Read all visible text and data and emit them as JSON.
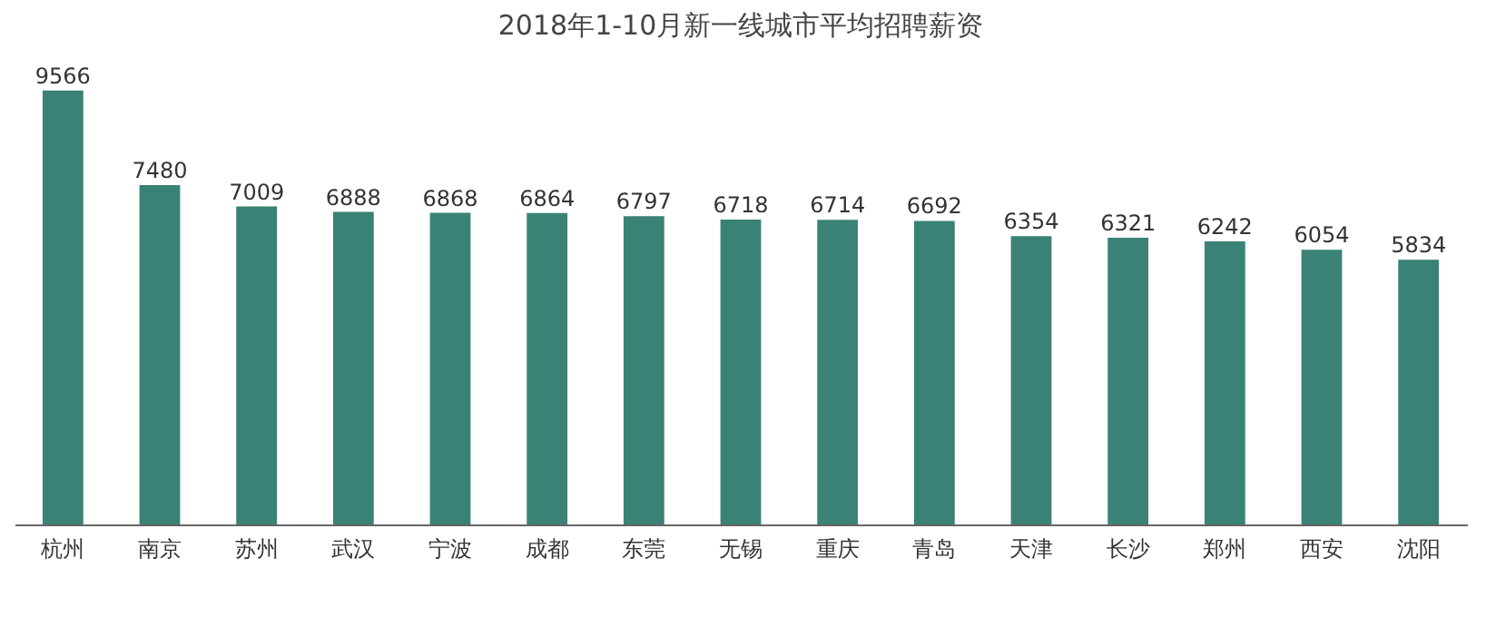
{
  "chart_data": {
    "type": "bar",
    "title": "2018年1-10月新一线城市平均招聘薪资",
    "categories": [
      "杭州",
      "南京",
      "苏州",
      "武汉",
      "宁波",
      "成都",
      "东莞",
      "无锡",
      "重庆",
      "青岛",
      "天津",
      "长沙",
      "郑州",
      "西安",
      "沈阳"
    ],
    "values": [
      9566,
      7480,
      7009,
      6888,
      6868,
      6864,
      6797,
      6718,
      6714,
      6692,
      6354,
      6321,
      6242,
      6054,
      5834
    ],
    "color": "#3a8276",
    "data_labels": true,
    "tick_labels": "x"
  }
}
